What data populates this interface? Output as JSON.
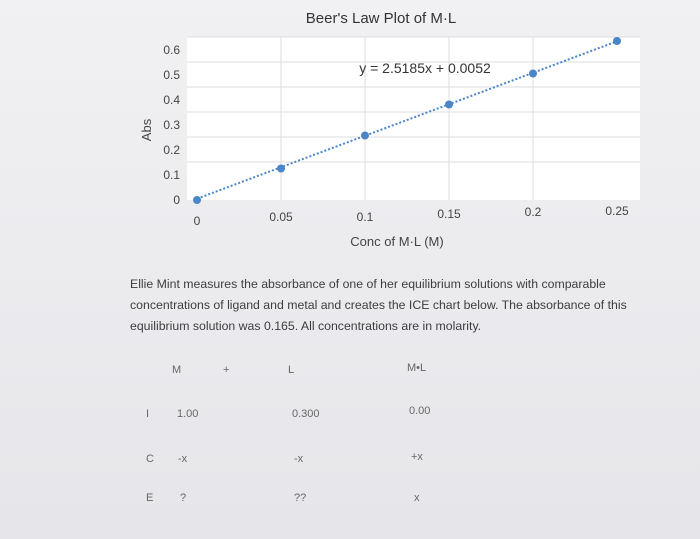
{
  "chart_data": {
    "type": "scatter",
    "title": "Beer's Law Plot of M·L",
    "xlabel": "Conc of M·L (M)",
    "ylabel": "Abs",
    "xlim": [
      0,
      0.25
    ],
    "ylim": [
      0,
      0.6
    ],
    "x_ticks": [
      "0",
      "0.05",
      "0.1",
      "0.15",
      "0.2",
      "0.25"
    ],
    "y_ticks": [
      "0",
      "0.1",
      "0.2",
      "0.3",
      "0.4",
      "0.5",
      "0.6"
    ],
    "trendline_label": "y = 2.5185x + 0.0052",
    "trendline": {
      "slope": 2.5185,
      "intercept": 0.0052,
      "style": "dotted"
    },
    "grid": true,
    "series": [
      {
        "points": [
          [
            0,
            0
          ],
          [
            0.05,
            0.126
          ],
          [
            0.1,
            0.258
          ],
          [
            0.15,
            0.382
          ],
          [
            0.2,
            0.506
          ],
          [
            0.25,
            0.636
          ]
        ]
      }
    ],
    "colors": {
      "marker": "#4a86c8",
      "trendline": "#4a86c8",
      "grid": "#dedede"
    }
  },
  "problem": {
    "text": "Ellie Mint measures the absorbance of one of her equilibrium solutions with comparable concentrations of ligand and metal and creates the ICE chart below. The absorbance of this equilibrium solution was 0.165. All concentrations are in molarity."
  },
  "ice": {
    "header": {
      "m": "M",
      "plus": "+",
      "l": "L",
      "ml": "M•L"
    },
    "rows": [
      {
        "label": "I",
        "m": "1.00",
        "l": "0.300",
        "ml": "0.00"
      },
      {
        "label": "C",
        "m": "-x",
        "l": "-x",
        "ml": "+x"
      },
      {
        "label": "E",
        "m": "?",
        "l": "??",
        "ml": "x"
      }
    ]
  }
}
